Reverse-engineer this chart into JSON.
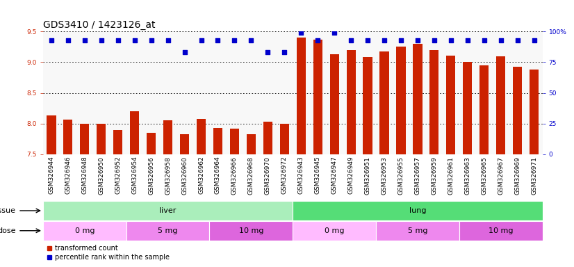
{
  "title": "GDS3410 / 1423126_at",
  "samples": [
    "GSM326944",
    "GSM326946",
    "GSM326948",
    "GSM326950",
    "GSM326952",
    "GSM326954",
    "GSM326956",
    "GSM326958",
    "GSM326960",
    "GSM326962",
    "GSM326964",
    "GSM326966",
    "GSM326968",
    "GSM326970",
    "GSM326972",
    "GSM326943",
    "GSM326945",
    "GSM326947",
    "GSM326949",
    "GSM326951",
    "GSM326953",
    "GSM326955",
    "GSM326957",
    "GSM326959",
    "GSM326961",
    "GSM326963",
    "GSM326965",
    "GSM326967",
    "GSM326969",
    "GSM326971"
  ],
  "bar_values": [
    8.13,
    8.07,
    8.0,
    8.0,
    7.9,
    8.2,
    7.85,
    8.05,
    7.83,
    8.08,
    7.93,
    7.92,
    7.83,
    8.03,
    8.0,
    9.4,
    9.37,
    9.13,
    9.2,
    9.08,
    9.18,
    9.25,
    9.3,
    9.2,
    9.11,
    9.0,
    8.95,
    9.1,
    8.93,
    8.88
  ],
  "percentile_values": [
    93,
    93,
    93,
    93,
    93,
    93,
    93,
    93,
    83,
    93,
    93,
    93,
    93,
    83,
    83,
    99,
    93,
    99,
    93,
    93,
    93,
    93,
    93,
    93,
    93,
    93,
    93,
    93,
    93,
    93
  ],
  "bar_color": "#cc2200",
  "percentile_color": "#0000cc",
  "ymin": 7.5,
  "ymax": 9.5,
  "yticks": [
    7.5,
    8.0,
    8.5,
    9.0,
    9.5
  ],
  "right_yticks": [
    0,
    25,
    50,
    75,
    100
  ],
  "right_yticklabels": [
    "0",
    "25",
    "50",
    "75",
    "100%"
  ],
  "tissue_groups": [
    {
      "label": "liver",
      "start": 0,
      "end": 15,
      "color": "#aaeebb"
    },
    {
      "label": "lung",
      "start": 15,
      "end": 30,
      "color": "#55dd77"
    }
  ],
  "dose_groups": [
    {
      "label": "0 mg",
      "start": 0,
      "end": 5,
      "color": "#ffbbff"
    },
    {
      "label": "5 mg",
      "start": 5,
      "end": 10,
      "color": "#ee88ee"
    },
    {
      "label": "10 mg",
      "start": 10,
      "end": 15,
      "color": "#dd66dd"
    },
    {
      "label": "0 mg",
      "start": 15,
      "end": 20,
      "color": "#ffbbff"
    },
    {
      "label": "5 mg",
      "start": 20,
      "end": 25,
      "color": "#ee88ee"
    },
    {
      "label": "10 mg",
      "start": 25,
      "end": 30,
      "color": "#dd66dd"
    }
  ],
  "legend_items": [
    {
      "label": "transformed count",
      "color": "#cc2200",
      "marker": "s"
    },
    {
      "label": "percentile rank within the sample",
      "color": "#0000cc",
      "marker": "s"
    }
  ],
  "title_fontsize": 10,
  "tick_fontsize": 6.5,
  "label_fontsize": 8,
  "bar_width": 0.55,
  "chart_bg": "#f8f8f8"
}
